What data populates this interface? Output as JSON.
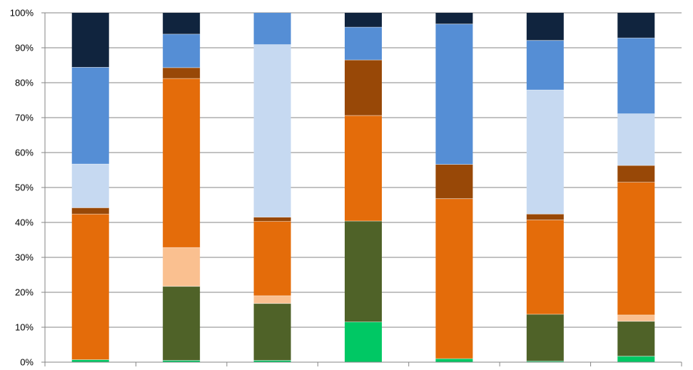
{
  "chart_data": {
    "type": "bar",
    "stacked": true,
    "normalized": true,
    "categories": [
      "",
      "",
      "",
      "",
      "",
      "",
      ""
    ],
    "ylim": [
      0,
      100
    ],
    "y_ticks": [
      "0%",
      "10%",
      "20%",
      "30%",
      "40%",
      "50%",
      "60%",
      "70%",
      "80%",
      "90%",
      "100%"
    ],
    "grid": true,
    "legend": "none",
    "series": [
      {
        "color": "#00c864",
        "values": [
          0.7,
          0.5,
          0.5,
          11.5,
          1.0,
          0.3,
          1.7
        ]
      },
      {
        "color": "#4f6228",
        "values": [
          0.0,
          21.2,
          16.3,
          28.9,
          0.0,
          13.4,
          10.0
        ]
      },
      {
        "color": "#fac090",
        "values": [
          0.0,
          11.1,
          2.2,
          0.0,
          0.0,
          0.0,
          1.8
        ]
      },
      {
        "color": "#e46c0a",
        "values": [
          41.7,
          48.4,
          21.3,
          30.2,
          45.8,
          27.0,
          38.0
        ]
      },
      {
        "color": "#984807",
        "values": [
          1.8,
          3.1,
          1.2,
          15.9,
          9.8,
          1.7,
          4.8
        ]
      },
      {
        "color": "#c6d9f1",
        "values": [
          12.5,
          0.0,
          49.4,
          0.0,
          0.0,
          35.5,
          14.8
        ]
      },
      {
        "color": "#558ed5",
        "values": [
          27.7,
          9.6,
          9.1,
          9.4,
          40.2,
          14.2,
          21.7
        ]
      },
      {
        "color": "#10243e",
        "values": [
          15.6,
          6.1,
          0.0,
          4.1,
          3.2,
          7.9,
          7.2
        ]
      }
    ]
  }
}
